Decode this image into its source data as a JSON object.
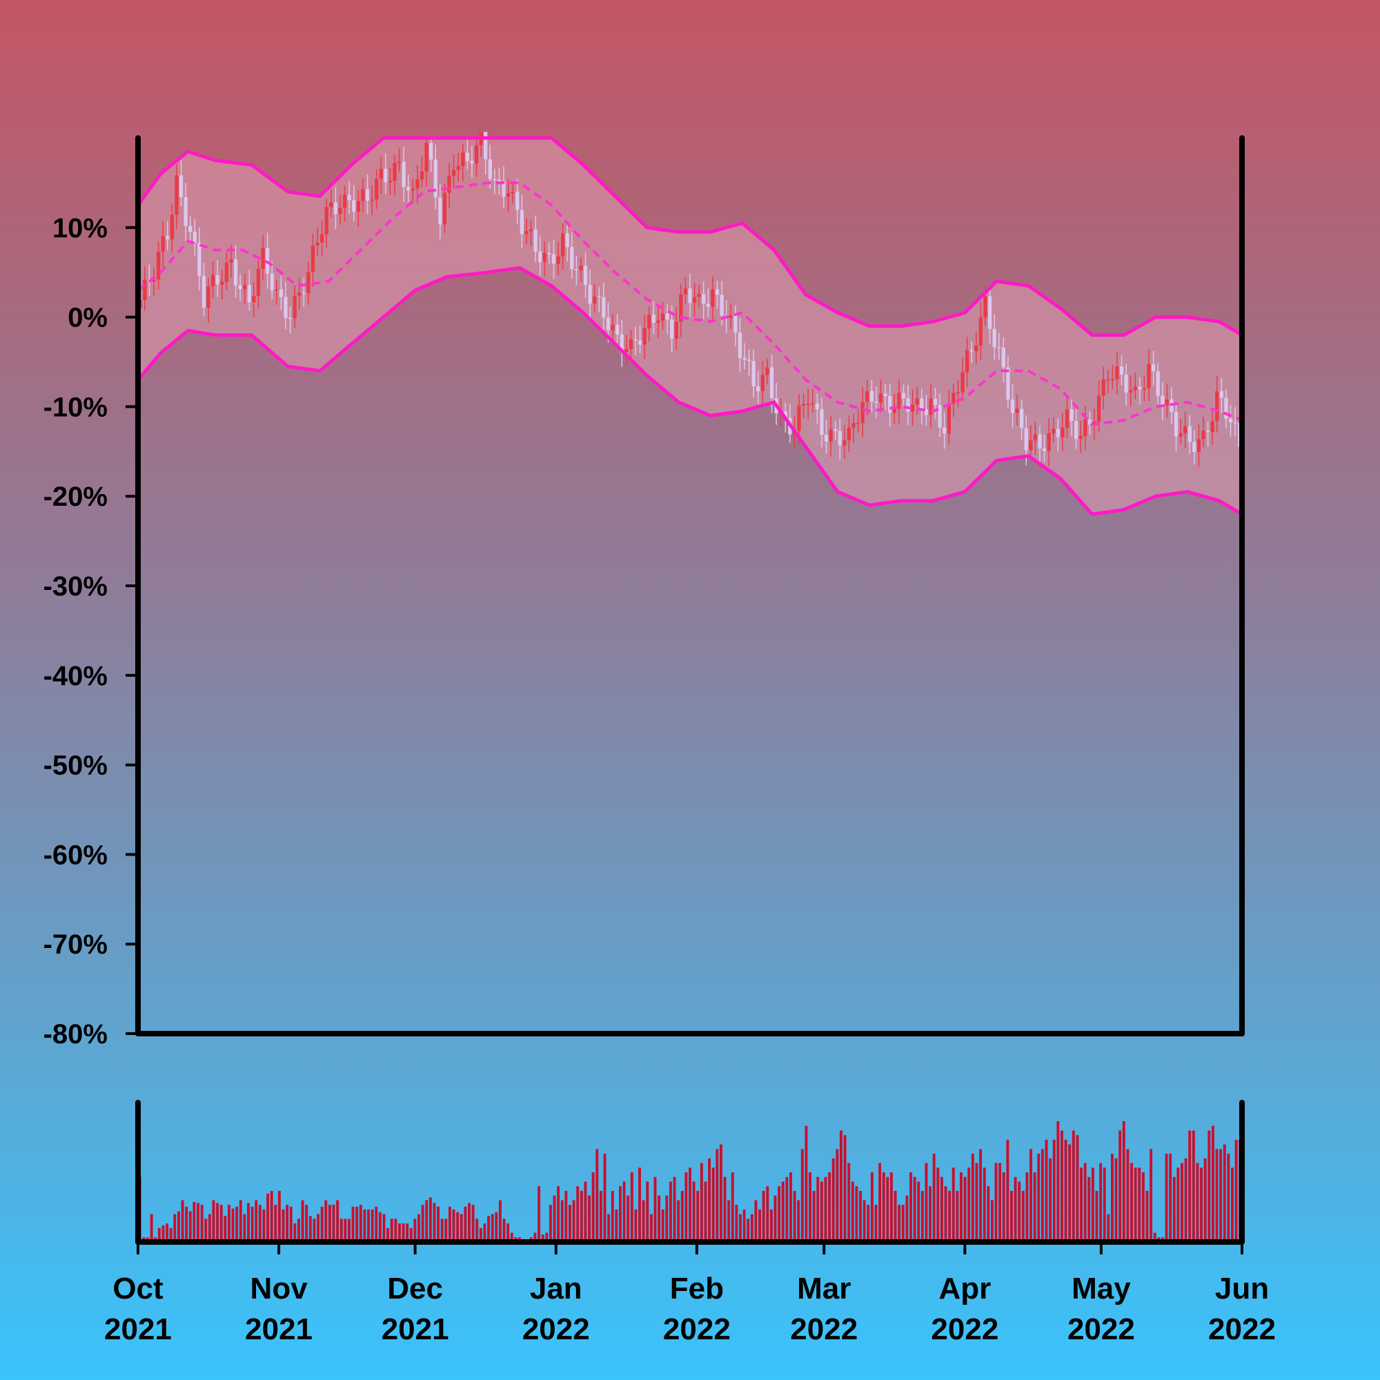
{
  "chart_data": {
    "type": "candlestick",
    "title": "",
    "xlabel": "",
    "ylabel": "",
    "x_range": [
      "2021-10-01",
      "2022-06-01"
    ],
    "ylim": [
      -80,
      20
    ],
    "y_ticks": [
      {
        "value": 10,
        "label": "10%"
      },
      {
        "value": 0,
        "label": "0%"
      },
      {
        "value": -10,
        "label": "-10%"
      },
      {
        "value": -20,
        "label": "-20%"
      },
      {
        "value": -30,
        "label": "-30%"
      },
      {
        "value": -40,
        "label": "-40%"
      },
      {
        "value": -50,
        "label": "-50%"
      },
      {
        "value": -60,
        "label": "-60%"
      },
      {
        "value": -70,
        "label": "-70%"
      },
      {
        "value": -80,
        "label": "-80%"
      }
    ],
    "x_ticks": [
      {
        "date": "2021-10-01",
        "month": "Oct",
        "year": "2021"
      },
      {
        "date": "2021-11-01",
        "month": "Nov",
        "year": "2021"
      },
      {
        "date": "2021-12-01",
        "month": "Dec",
        "year": "2021"
      },
      {
        "date": "2022-01-01",
        "month": "Jan",
        "year": "2022"
      },
      {
        "date": "2022-02-01",
        "month": "Feb",
        "year": "2022"
      },
      {
        "date": "2022-03-01",
        "month": "Mar",
        "year": "2022"
      },
      {
        "date": "2022-04-01",
        "month": "Apr",
        "year": "2022"
      },
      {
        "date": "2022-05-01",
        "month": "May",
        "year": "2022"
      },
      {
        "date": "2022-06-01",
        "month": "Jun",
        "year": "2022"
      }
    ],
    "close_path": [
      [
        "2021-10-01",
        1.0
      ],
      [
        "2021-10-05",
        4.5
      ],
      [
        "2021-10-08",
        9.5
      ],
      [
        "2021-10-10",
        15.5
      ],
      [
        "2021-10-13",
        10.0
      ],
      [
        "2021-10-16",
        1.5
      ],
      [
        "2021-10-19",
        4.0
      ],
      [
        "2021-10-22",
        6.5
      ],
      [
        "2021-10-26",
        1.5
      ],
      [
        "2021-10-29",
        6.0
      ],
      [
        "2021-11-01",
        2.5
      ],
      [
        "2021-11-04",
        1.0
      ],
      [
        "2021-11-08",
        4.5
      ],
      [
        "2021-11-12",
        11.5
      ],
      [
        "2021-11-15",
        13.5
      ],
      [
        "2021-11-18",
        13.0
      ],
      [
        "2021-11-21",
        12.5
      ],
      [
        "2021-11-24",
        15.5
      ],
      [
        "2021-11-28",
        17.5
      ],
      [
        "2021-12-01",
        13.0
      ],
      [
        "2021-12-04",
        18.5
      ],
      [
        "2021-12-07",
        11.5
      ],
      [
        "2021-12-10",
        18.0
      ],
      [
        "2021-12-13",
        17.0
      ],
      [
        "2021-12-16",
        19.0
      ],
      [
        "2021-12-19",
        15.0
      ],
      [
        "2021-12-22",
        15.0
      ],
      [
        "2021-12-25",
        10.0
      ],
      [
        "2021-12-28",
        7.0
      ],
      [
        "2021-12-31",
        6.5
      ],
      [
        "2022-01-03",
        9.0
      ],
      [
        "2022-01-06",
        5.0
      ],
      [
        "2022-01-09",
        2.0
      ],
      [
        "2022-01-12",
        1.0
      ],
      [
        "2022-01-15",
        -2.0
      ],
      [
        "2022-01-18",
        -4.0
      ],
      [
        "2022-01-21",
        -2.0
      ],
      [
        "2022-01-24",
        1.0
      ],
      [
        "2022-01-27",
        -1.0
      ],
      [
        "2022-01-30",
        2.5
      ],
      [
        "2022-02-02",
        1.0
      ],
      [
        "2022-02-05",
        3.0
      ],
      [
        "2022-02-08",
        1.0
      ],
      [
        "2022-02-11",
        -4.0
      ],
      [
        "2022-02-14",
        -8.0
      ],
      [
        "2022-02-17",
        -6.0
      ],
      [
        "2022-02-20",
        -11.0
      ],
      [
        "2022-02-23",
        -13.0
      ],
      [
        "2022-02-26",
        -9.0
      ],
      [
        "2022-03-01",
        -12.0
      ],
      [
        "2022-03-04",
        -13.0
      ],
      [
        "2022-03-07",
        -14.0
      ],
      [
        "2022-03-10",
        -10.0
      ],
      [
        "2022-03-13",
        -8.0
      ],
      [
        "2022-03-16",
        -9.5
      ],
      [
        "2022-03-19",
        -10.0
      ],
      [
        "2022-03-22",
        -10.5
      ],
      [
        "2022-03-25",
        -9.0
      ],
      [
        "2022-03-28",
        -12.0
      ],
      [
        "2022-03-31",
        -8.0
      ],
      [
        "2022-04-03",
        -4.0
      ],
      [
        "2022-04-06",
        2.0
      ],
      [
        "2022-04-09",
        -4.0
      ],
      [
        "2022-04-12",
        -11.0
      ],
      [
        "2022-04-15",
        -14.0
      ],
      [
        "2022-04-18",
        -13.5
      ],
      [
        "2022-04-21",
        -13.0
      ],
      [
        "2022-04-24",
        -12.0
      ],
      [
        "2022-04-27",
        -13.5
      ],
      [
        "2022-04-30",
        -10.0
      ],
      [
        "2022-05-03",
        -6.0
      ],
      [
        "2022-05-06",
        -7.5
      ],
      [
        "2022-05-09",
        -9.0
      ],
      [
        "2022-05-12",
        -5.0
      ],
      [
        "2022-05-15",
        -9.0
      ],
      [
        "2022-05-18",
        -13.0
      ],
      [
        "2022-05-21",
        -14.0
      ],
      [
        "2022-05-24",
        -13.0
      ],
      [
        "2022-05-27",
        -9.0
      ],
      [
        "2022-05-30",
        -12.0
      ],
      [
        "2022-06-01",
        -15.0
      ]
    ],
    "series": [
      {
        "name": "",
        "type": "line",
        "style": "dashed",
        "points": [
          [
            "2021-10-01",
            3.0
          ],
          [
            "2021-10-06",
            5.0
          ],
          [
            "2021-10-12",
            8.5
          ],
          [
            "2021-10-18",
            7.5
          ],
          [
            "2021-10-24",
            7.5
          ],
          [
            "2021-10-30",
            6.0
          ],
          [
            "2021-11-05",
            3.5
          ],
          [
            "2021-11-12",
            4.0
          ],
          [
            "2021-11-19",
            7.5
          ],
          [
            "2021-11-26",
            11.0
          ],
          [
            "2021-12-03",
            14.0
          ],
          [
            "2021-12-10",
            14.5
          ],
          [
            "2021-12-17",
            15.0
          ],
          [
            "2021-12-24",
            15.0
          ],
          [
            "2021-12-31",
            12.5
          ],
          [
            "2022-01-07",
            8.5
          ],
          [
            "2022-01-14",
            5.0
          ],
          [
            "2022-01-21",
            2.0
          ],
          [
            "2022-01-28",
            0.0
          ],
          [
            "2022-02-04",
            -0.5
          ],
          [
            "2022-02-11",
            0.5
          ],
          [
            "2022-02-18",
            -3.0
          ],
          [
            "2022-02-25",
            -7.0
          ],
          [
            "2022-03-04",
            -9.5
          ],
          [
            "2022-03-11",
            -10.5
          ],
          [
            "2022-03-18",
            -10.0
          ],
          [
            "2022-03-25",
            -10.5
          ],
          [
            "2022-04-01",
            -9.0
          ],
          [
            "2022-04-08",
            -6.0
          ],
          [
            "2022-04-15",
            -6.0
          ],
          [
            "2022-04-22",
            -8.0
          ],
          [
            "2022-04-29",
            -12.0
          ],
          [
            "2022-05-06",
            -11.5
          ],
          [
            "2022-05-13",
            -10.0
          ],
          [
            "2022-05-20",
            -9.5
          ],
          [
            "2022-05-27",
            -10.5
          ],
          [
            "2022-06-01",
            -11.5
          ]
        ]
      },
      {
        "name": "",
        "type": "line",
        "points": [
          [
            "2021-10-01",
            12.5
          ],
          [
            "2021-10-06",
            16.0
          ],
          [
            "2021-10-12",
            18.5
          ],
          [
            "2021-10-18",
            17.5
          ],
          [
            "2021-10-26",
            17.0
          ],
          [
            "2021-11-03",
            14.0
          ],
          [
            "2021-11-10",
            13.5
          ],
          [
            "2021-11-17",
            17.0
          ],
          [
            "2021-11-24",
            20.0
          ],
          [
            "2021-12-31",
            20.0
          ],
          [
            "2022-01-07",
            17.0
          ],
          [
            "2022-01-14",
            13.5
          ],
          [
            "2022-01-21",
            10.0
          ],
          [
            "2022-01-28",
            9.5
          ],
          [
            "2022-02-04",
            9.5
          ],
          [
            "2022-02-11",
            10.5
          ],
          [
            "2022-02-18",
            7.5
          ],
          [
            "2022-02-25",
            2.5
          ],
          [
            "2022-03-04",
            0.5
          ],
          [
            "2022-03-11",
            -1.0
          ],
          [
            "2022-03-18",
            -1.0
          ],
          [
            "2022-03-25",
            -0.5
          ],
          [
            "2022-04-01",
            0.5
          ],
          [
            "2022-04-08",
            4.0
          ],
          [
            "2022-04-15",
            3.5
          ],
          [
            "2022-04-22",
            1.0
          ],
          [
            "2022-04-29",
            -2.0
          ],
          [
            "2022-05-06",
            -2.0
          ],
          [
            "2022-05-13",
            0.0
          ],
          [
            "2022-05-20",
            0.0
          ],
          [
            "2022-05-27",
            -0.5
          ],
          [
            "2022-06-01",
            -2.0
          ]
        ]
      },
      {
        "name": "",
        "type": "line",
        "points": [
          [
            "2021-10-01",
            -7.0
          ],
          [
            "2021-10-06",
            -4.0
          ],
          [
            "2021-10-12",
            -1.5
          ],
          [
            "2021-10-18",
            -2.0
          ],
          [
            "2021-10-26",
            -2.0
          ],
          [
            "2021-11-03",
            -5.5
          ],
          [
            "2021-11-10",
            -6.0
          ],
          [
            "2021-11-17",
            -3.0
          ],
          [
            "2021-11-24",
            0.0
          ],
          [
            "2021-12-01",
            3.0
          ],
          [
            "2021-12-08",
            4.5
          ],
          [
            "2021-12-17",
            5.0
          ],
          [
            "2021-12-24",
            5.5
          ],
          [
            "2021-12-31",
            3.5
          ],
          [
            "2022-01-07",
            0.5
          ],
          [
            "2022-01-14",
            -3.0
          ],
          [
            "2022-01-21",
            -6.5
          ],
          [
            "2022-01-28",
            -9.5
          ],
          [
            "2022-02-04",
            -11.0
          ],
          [
            "2022-02-11",
            -10.5
          ],
          [
            "2022-02-18",
            -9.5
          ],
          [
            "2022-02-25",
            -14.5
          ],
          [
            "2022-03-04",
            -19.5
          ],
          [
            "2022-03-11",
            -21.0
          ],
          [
            "2022-03-18",
            -20.5
          ],
          [
            "2022-03-25",
            -20.5
          ],
          [
            "2022-04-01",
            -19.5
          ],
          [
            "2022-04-08",
            -16.0
          ],
          [
            "2022-04-15",
            -15.5
          ],
          [
            "2022-04-22",
            -18.0
          ],
          [
            "2022-04-29",
            -22.0
          ],
          [
            "2022-05-06",
            -21.5
          ],
          [
            "2022-05-13",
            -20.0
          ],
          [
            "2022-05-20",
            -19.5
          ],
          [
            "2022-05-27",
            -20.5
          ],
          [
            "2022-06-01",
            -22.0
          ]
        ]
      }
    ],
    "volume": {
      "ylim": [
        0,
        150
      ],
      "values": [
        70,
        5,
        5,
        30,
        5,
        15,
        18,
        20,
        15,
        30,
        33,
        45,
        38,
        33,
        43,
        42,
        40,
        25,
        30,
        45,
        42,
        40,
        28,
        40,
        36,
        38,
        45,
        30,
        42,
        38,
        45,
        40,
        35,
        52,
        55,
        40,
        55,
        35,
        40,
        38,
        20,
        25,
        45,
        40,
        28,
        25,
        30,
        38,
        45,
        40,
        40,
        45,
        25,
        25,
        25,
        38,
        38,
        40,
        35,
        35,
        35,
        38,
        32,
        30,
        15,
        25,
        25,
        20,
        20,
        20,
        15,
        25,
        30,
        40,
        45,
        48,
        42,
        38,
        25,
        25,
        38,
        35,
        32,
        30,
        38,
        42,
        40,
        25,
        15,
        20,
        28,
        30,
        32,
        45,
        25,
        20,
        10,
        5,
        5,
        0,
        2,
        5,
        10,
        60,
        8,
        10,
        40,
        50,
        60,
        45,
        55,
        40,
        45,
        60,
        55,
        65,
        50,
        75,
        100,
        55,
        95,
        30,
        55,
        35,
        60,
        65,
        50,
        75,
        35,
        80,
        45,
        65,
        30,
        70,
        50,
        35,
        50,
        65,
        70,
        45,
        55,
        75,
        80,
        65,
        55,
        85,
        65,
        90,
        80,
        100,
        105,
        70,
        45,
        75,
        40,
        30,
        35,
        25,
        30,
        45,
        35,
        55,
        60,
        35,
        50,
        60,
        65,
        70,
        75,
        55,
        45,
        100,
        125,
        75,
        55,
        70,
        65,
        70,
        75,
        90,
        100,
        120,
        115,
        85,
        65,
        60,
        55,
        45,
        40,
        75,
        40,
        85,
        75,
        70,
        75,
        55,
        40,
        40,
        50,
        75,
        70,
        65,
        55,
        85,
        60,
        95,
        80,
        70,
        60,
        55,
        80,
        55,
        75,
        70,
        80,
        95,
        85,
        100,
        80,
        60,
        45,
        85,
        85,
        75,
        110,
        55,
        70,
        65,
        55,
        75,
        100,
        75,
        95,
        100,
        110,
        90,
        110,
        130,
        120,
        110,
        105,
        120,
        115,
        80,
        85,
        70,
        80,
        55,
        85,
        80,
        30,
        95,
        90,
        120,
        130,
        100,
        85,
        80,
        80,
        75,
        55,
        100,
        10,
        5,
        5,
        95,
        95,
        70,
        80,
        85,
        90,
        120,
        120,
        85,
        80,
        90,
        120,
        125,
        100,
        100,
        105,
        95,
        80,
        110,
        110
      ]
    }
  }
}
